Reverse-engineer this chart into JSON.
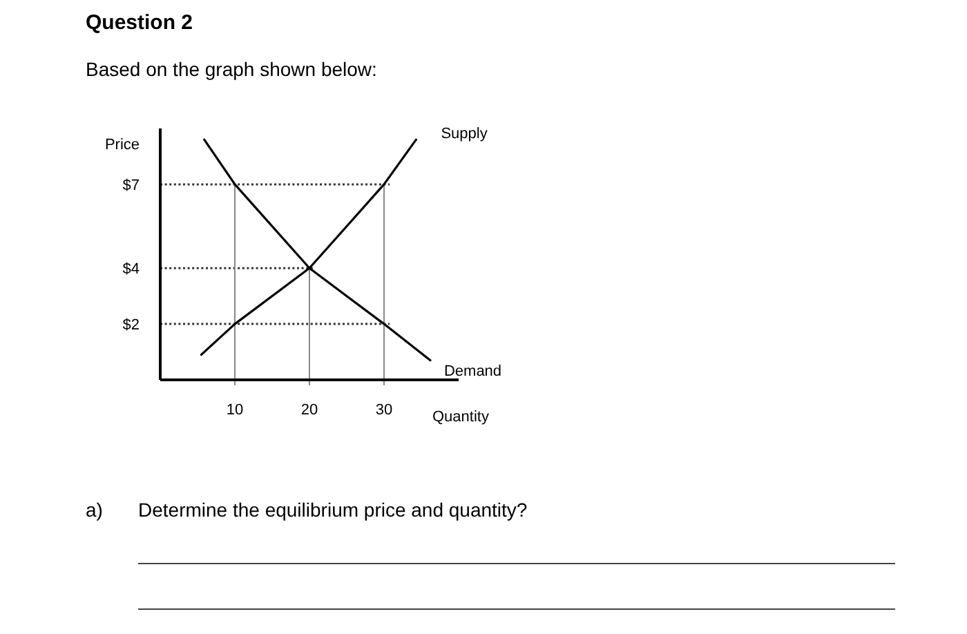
{
  "chart_data": {
    "type": "line",
    "title": "Question 2",
    "subtitle": "Based on the graph shown below:",
    "xlabel": "Quantity",
    "ylabel": "Price",
    "xlim": [
      0,
      40
    ],
    "xticks": [
      10,
      20,
      30
    ],
    "ylim": [
      0,
      9
    ],
    "yticks": [
      {
        "value": 2,
        "label": "$2"
      },
      {
        "value": 4,
        "label": "$4"
      },
      {
        "value": 7,
        "label": "$7"
      }
    ],
    "series": [
      {
        "name": "Supply",
        "color": "#000000",
        "x": [
          5.5,
          10,
          20,
          30,
          34.3
        ],
        "values": [
          0.9,
          2,
          4,
          7,
          8.6
        ]
      },
      {
        "name": "Demand",
        "color": "#000000",
        "x": [
          5.9,
          10,
          20,
          30,
          36.2
        ],
        "values": [
          8.6,
          7,
          4,
          2,
          0.7
        ]
      }
    ],
    "ref_lines": [
      {
        "axis": "y",
        "value": 7,
        "color": "#333333",
        "line_style": "dotted"
      },
      {
        "axis": "y",
        "value": 4,
        "color": "#333333",
        "line_style": "dotted"
      },
      {
        "axis": "y",
        "value": 2,
        "color": "#333333",
        "line_style": "dotted"
      },
      {
        "axis": "x",
        "value": 10,
        "color": "#888888",
        "line_style": "solid"
      },
      {
        "axis": "x",
        "value": 20,
        "color": "#888888",
        "line_style": "solid"
      },
      {
        "axis": "x",
        "value": 30,
        "color": "#888888",
        "line_style": "solid"
      }
    ],
    "annotations": [
      "a)",
      "Determine the equilibrium price and quantity?"
    ],
    "grid": false,
    "legend": false,
    "marker": "none",
    "line_style": "solid"
  }
}
